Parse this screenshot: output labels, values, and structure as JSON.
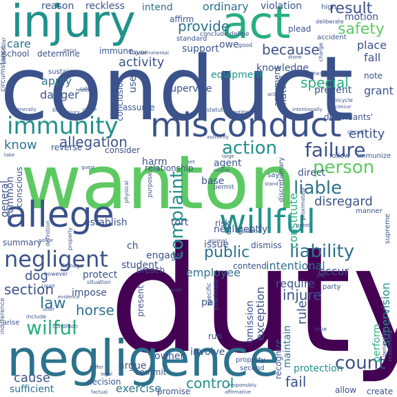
{
  "palette": {
    "dark_purple": "#440154",
    "indigo": "#3b528b",
    "steel_blue": "#2c728e",
    "teal": "#21918c",
    "sea_green": "#28ae80",
    "green": "#5ec962",
    "lime": "#addc30",
    "yellow": "#fde725"
  },
  "words": {
    "duty": "duty",
    "conduct": "conduct",
    "wanton": "wanton",
    "negligence": "negligence",
    "injury": "injury",
    "act": "act",
    "misconduct": "misconduct",
    "immunity": "immunity",
    "allege": "allege",
    "willful": "willful",
    "negligent": "negligent",
    "wilful": "wilful",
    "liability": "liability",
    "complaint": "complaint",
    "failure": "failure",
    "action": "action",
    "person": "person",
    "liable": "liable",
    "count": "count",
    "safety": "safety",
    "result": "result",
    "because": "because",
    "provide": "provide",
    "section": "section",
    "public": "public",
    "control": "control",
    "law": "law",
    "horse": "horse",
    "allegation": "allegation",
    "know": "know",
    "cause": "cause",
    "exercise": "exercise",
    "fail": "fail",
    "injure": "injure",
    "rule": "rule",
    "employee": "employee",
    "special": "special",
    "intentional": "intentional",
    "supervision": "supervision",
    "knowledge": "knowledge",
    "disregard": "disregard",
    "entity": "entity",
    "care": "care",
    "activity": "activity",
    "danger": "danger",
    "supervise": "supervise",
    "equipment": "equipment",
    "apply": "apply",
    "dog": "dog",
    "sufficient": "sufficient",
    "ordinary": "ordinary",
    "reckless": "reckless",
    "reason": "reason",
    "intend": "intend",
    "violation": "violation",
    "motion": "motion",
    "place": "place",
    "fall": "fall",
    "grant": "grant",
    "prevent": "prevent",
    "matter": "matter",
    "exception": "exception",
    "omission": "omission",
    "require": "require",
    "protection": "protection",
    "perform": "perform",
    "occur": "occur",
    "establish": "establish",
    "harm": "harm",
    "tort": "tort",
    "issue": "issue",
    "engage": "engage",
    "protect": "protect",
    "impose": "impose",
    "general": "general",
    "common": "common",
    "conscious": "conscious",
    "summary": "summary",
    "student": "student",
    "base": "base",
    "direct": "direct",
    "constitute": "constitute",
    "present": "present",
    "involve": "involve",
    "owner": "owner",
    "maintain": "maintain",
    "recognize": "recognize",
    "argue": "argue",
    "commit": "commit",
    "decision": "decision",
    "promise": "promise",
    "allow": "allow",
    "create": "create",
    "support": "support",
    "immune": "immune",
    "school": "school",
    "determine": "determine",
    "owe": "owe",
    "affirm": "affirm",
    "plead": "plead",
    "accident": "accident",
    "defendants": "defendants'",
    "agent": "agent",
    "use": "use",
    "cite": "cite",
    "conclusion": "conclusion",
    "assume": "assume",
    "reverse": "reverse",
    "consider": "consider",
    "relationship": "relationship",
    "negligently": "negligently",
    "contend": "contend",
    "dismiss": "dismiss",
    "risk": "risk",
    "breach": "breach",
    "par": "par",
    "run": "run",
    "ch": "ch",
    "note": "note",
    "argument": "argument",
    "standard": "standard",
    "sustain": "sustain",
    "circumstance": "circumstance",
    "particular": "particular",
    "conclude_define": "conclude define",
    "deliberate": "deliberate",
    "high": "high",
    "favor": "favor",
    "governmental": "governmental",
    "generally": "generally",
    "bring": "bring",
    "statute": "statute",
    "intentionally": "intentionally",
    "theory": "theory",
    "bicycle": "bicycle",
    "circuit": "circuit",
    "follow": "follow",
    "immunize": "immunize",
    "stand": "stand",
    "say": "say",
    "permit": "permit",
    "purpose": "purpose",
    "physical": "physical",
    "discretionary": "discretionary",
    "proximately": "proximately",
    "manner": "manner",
    "supreme": "supreme",
    "claim": "claim",
    "animal": "animal",
    "definition": "definition",
    "properly": "properly",
    "damage": "damage",
    "however": "however",
    "situation": "situation",
    "include": "include",
    "condition": "condition",
    "indifference": "indifference",
    "arise": "arise",
    "specific": "specific",
    "proximate": "proximate",
    "party": "party",
    "property": "property",
    "generalize": "generalize",
    "reasonable": "reasonable",
    "second": "second",
    "factual": "factual",
    "legal": "legal",
    "affirmative": "affirmative",
    "responsibly": "responsibly",
    "good": "good",
    "guest": "guest",
    "bar": "bar",
    "rope": "rope",
    "stone": "stone",
    "authority": "authority",
    "take": "take",
    "charge": "charge",
    "set": "set",
    "large": "large",
    "course": "course",
    "suffer": "suffer",
    "utter": "utter",
    "police": "police",
    "count_small": "count",
    "evidence": "evidence",
    "entitlement": "entitlement",
    "occur_small": "occur",
    "safety_small": "safety",
    "concur": "concur",
    "prior": "prior",
    "cause_small": "cause",
    "guest_small": "guest",
    "injury_small": "injury",
    "find": "find",
    "actual": "actual",
    "reason_small": "reason"
  }
}
